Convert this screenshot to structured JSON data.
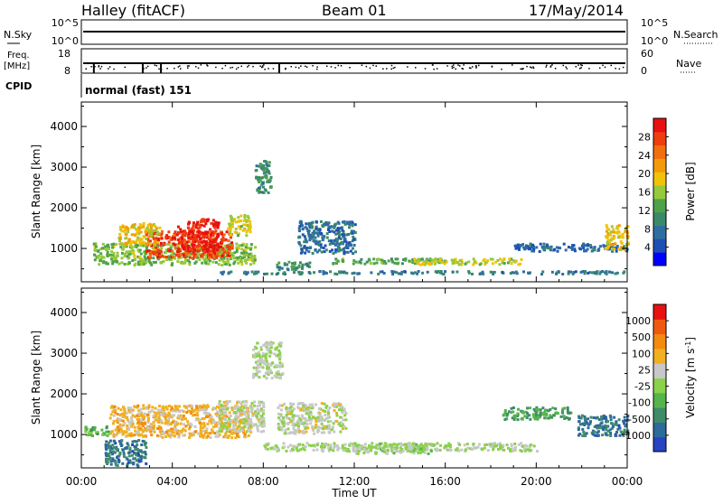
{
  "header": {
    "title": "Halley (fitACF)",
    "beam": "Beam 01",
    "date": "17/May/2014"
  },
  "top_panels": {
    "nsky_label": "N.Sky",
    "nsky_ticks": [
      "10^5",
      "10^0"
    ],
    "nsearch_label": "N.Search",
    "nsearch_ticks": [
      "10^5",
      "10^0"
    ],
    "freq_label": "Freq.",
    "freq_unit": "[MHz]",
    "freq_ticks": [
      "18",
      "8"
    ],
    "nave_label": "Nave",
    "nave_ticks": [
      "60",
      "0"
    ],
    "cpid_label": "CPID",
    "cpid_text": "normal (fast) 151"
  },
  "chart_data": [
    {
      "type": "heatmap",
      "title": "",
      "ylabel": "Slant Range [km]",
      "xlabel": "",
      "x_ticks": [
        "00:00",
        "04:00",
        "08:00",
        "12:00",
        "16:00",
        "20:00",
        "00:00"
      ],
      "y_ticks": [
        "1000",
        "2000",
        "3000",
        "4000"
      ],
      "ylim": [
        180,
        4600
      ],
      "xlim_hours": [
        0,
        24
      ],
      "colorbar": {
        "label": "Power [dB]",
        "ticks": [
          "4",
          "8",
          "12",
          "16",
          "20",
          "24",
          "28"
        ],
        "range": [
          0,
          30
        ],
        "colors": [
          "#0000ff",
          "#1f4fb4",
          "#2f6f9f",
          "#3a8a6a",
          "#4ea24a",
          "#96c93b",
          "#f0c20a",
          "#f49a0a",
          "#f26f0f",
          "#ef3d10",
          "#e81010"
        ]
      },
      "regions": [
        {
          "t": [
            0.5,
            7.6
          ],
          "r": [
            620,
            1150
          ],
          "value": 14
        },
        {
          "t": [
            2.8,
            6.6
          ],
          "r": [
            800,
            1450
          ],
          "value": 26
        },
        {
          "t": [
            4.2,
            6.0
          ],
          "r": [
            950,
            1750
          ],
          "value": 28
        },
        {
          "t": [
            1.6,
            3.4
          ],
          "r": [
            1100,
            1650
          ],
          "value": 18
        },
        {
          "t": [
            6.4,
            7.4
          ],
          "r": [
            1350,
            1850
          ],
          "value": 16
        },
        {
          "t": [
            7.6,
            8.3
          ],
          "r": [
            2400,
            3200
          ],
          "value": 10
        },
        {
          "t": [
            9.5,
            12.0
          ],
          "r": [
            900,
            1700
          ],
          "value": 7
        },
        {
          "t": [
            11.0,
            16.0
          ],
          "r": [
            650,
            780
          ],
          "value": 12
        },
        {
          "t": [
            14.5,
            19.3
          ],
          "r": [
            630,
            780
          ],
          "value": 16
        },
        {
          "t": [
            19.0,
            24.0
          ],
          "r": [
            950,
            1150
          ],
          "value": 6
        },
        {
          "t": [
            23.0,
            24.0
          ],
          "r": [
            1000,
            1600
          ],
          "value": 18
        },
        {
          "t": [
            8.5,
            10.0
          ],
          "r": [
            500,
            700
          ],
          "value": 10
        },
        {
          "t": [
            6.0,
            24.0
          ],
          "r": [
            400,
            470
          ],
          "value": 8
        }
      ]
    },
    {
      "type": "heatmap",
      "title": "",
      "ylabel": "Slant Range [km]",
      "xlabel": "Time UT",
      "x_ticks": [
        "00:00",
        "04:00",
        "08:00",
        "12:00",
        "16:00",
        "20:00",
        "00:00"
      ],
      "y_ticks": [
        "1000",
        "2000",
        "3000",
        "4000"
      ],
      "ylim": [
        180,
        4600
      ],
      "xlim_hours": [
        0,
        24
      ],
      "colorbar": {
        "label": "Velocity [m s^-1]",
        "ticks": [
          "1000",
          "500",
          "100",
          "25",
          "-25",
          "-100",
          "-500",
          "-1000"
        ],
        "range": [
          -1100,
          1100
        ],
        "colors": [
          "#2743c1",
          "#2e6a9a",
          "#3f8c6a",
          "#56b44a",
          "#8ad24a",
          "#c8c8c8",
          "#f0b020",
          "#f58a10",
          "#f05a10",
          "#e81010"
        ]
      },
      "regions": [
        {
          "t": [
            1.2,
            7.4
          ],
          "r": [
            950,
            1750
          ],
          "value": 300
        },
        {
          "t": [
            6.0,
            8.0
          ],
          "r": [
            1100,
            1850
          ],
          "value": 80
        },
        {
          "t": [
            0.0,
            1.2
          ],
          "r": [
            1000,
            1250
          ],
          "value": -300
        },
        {
          "t": [
            1.0,
            2.8
          ],
          "r": [
            250,
            900
          ],
          "value": -700
        },
        {
          "t": [
            7.5,
            8.8
          ],
          "r": [
            2400,
            3300
          ],
          "value": 0
        },
        {
          "t": [
            8.6,
            11.6
          ],
          "r": [
            1050,
            1800
          ],
          "value": 60
        },
        {
          "t": [
            8.0,
            20.0
          ],
          "r": [
            620,
            820
          ],
          "value": 0
        },
        {
          "t": [
            12.0,
            15.5
          ],
          "r": [
            550,
            800
          ],
          "value": -60
        },
        {
          "t": [
            18.5,
            21.5
          ],
          "r": [
            1400,
            1700
          ],
          "value": -400
        },
        {
          "t": [
            21.8,
            24.0
          ],
          "r": [
            1000,
            1500
          ],
          "value": -700
        }
      ]
    }
  ],
  "colors": {
    "background": "#ffffff",
    "axis": "#000000"
  }
}
